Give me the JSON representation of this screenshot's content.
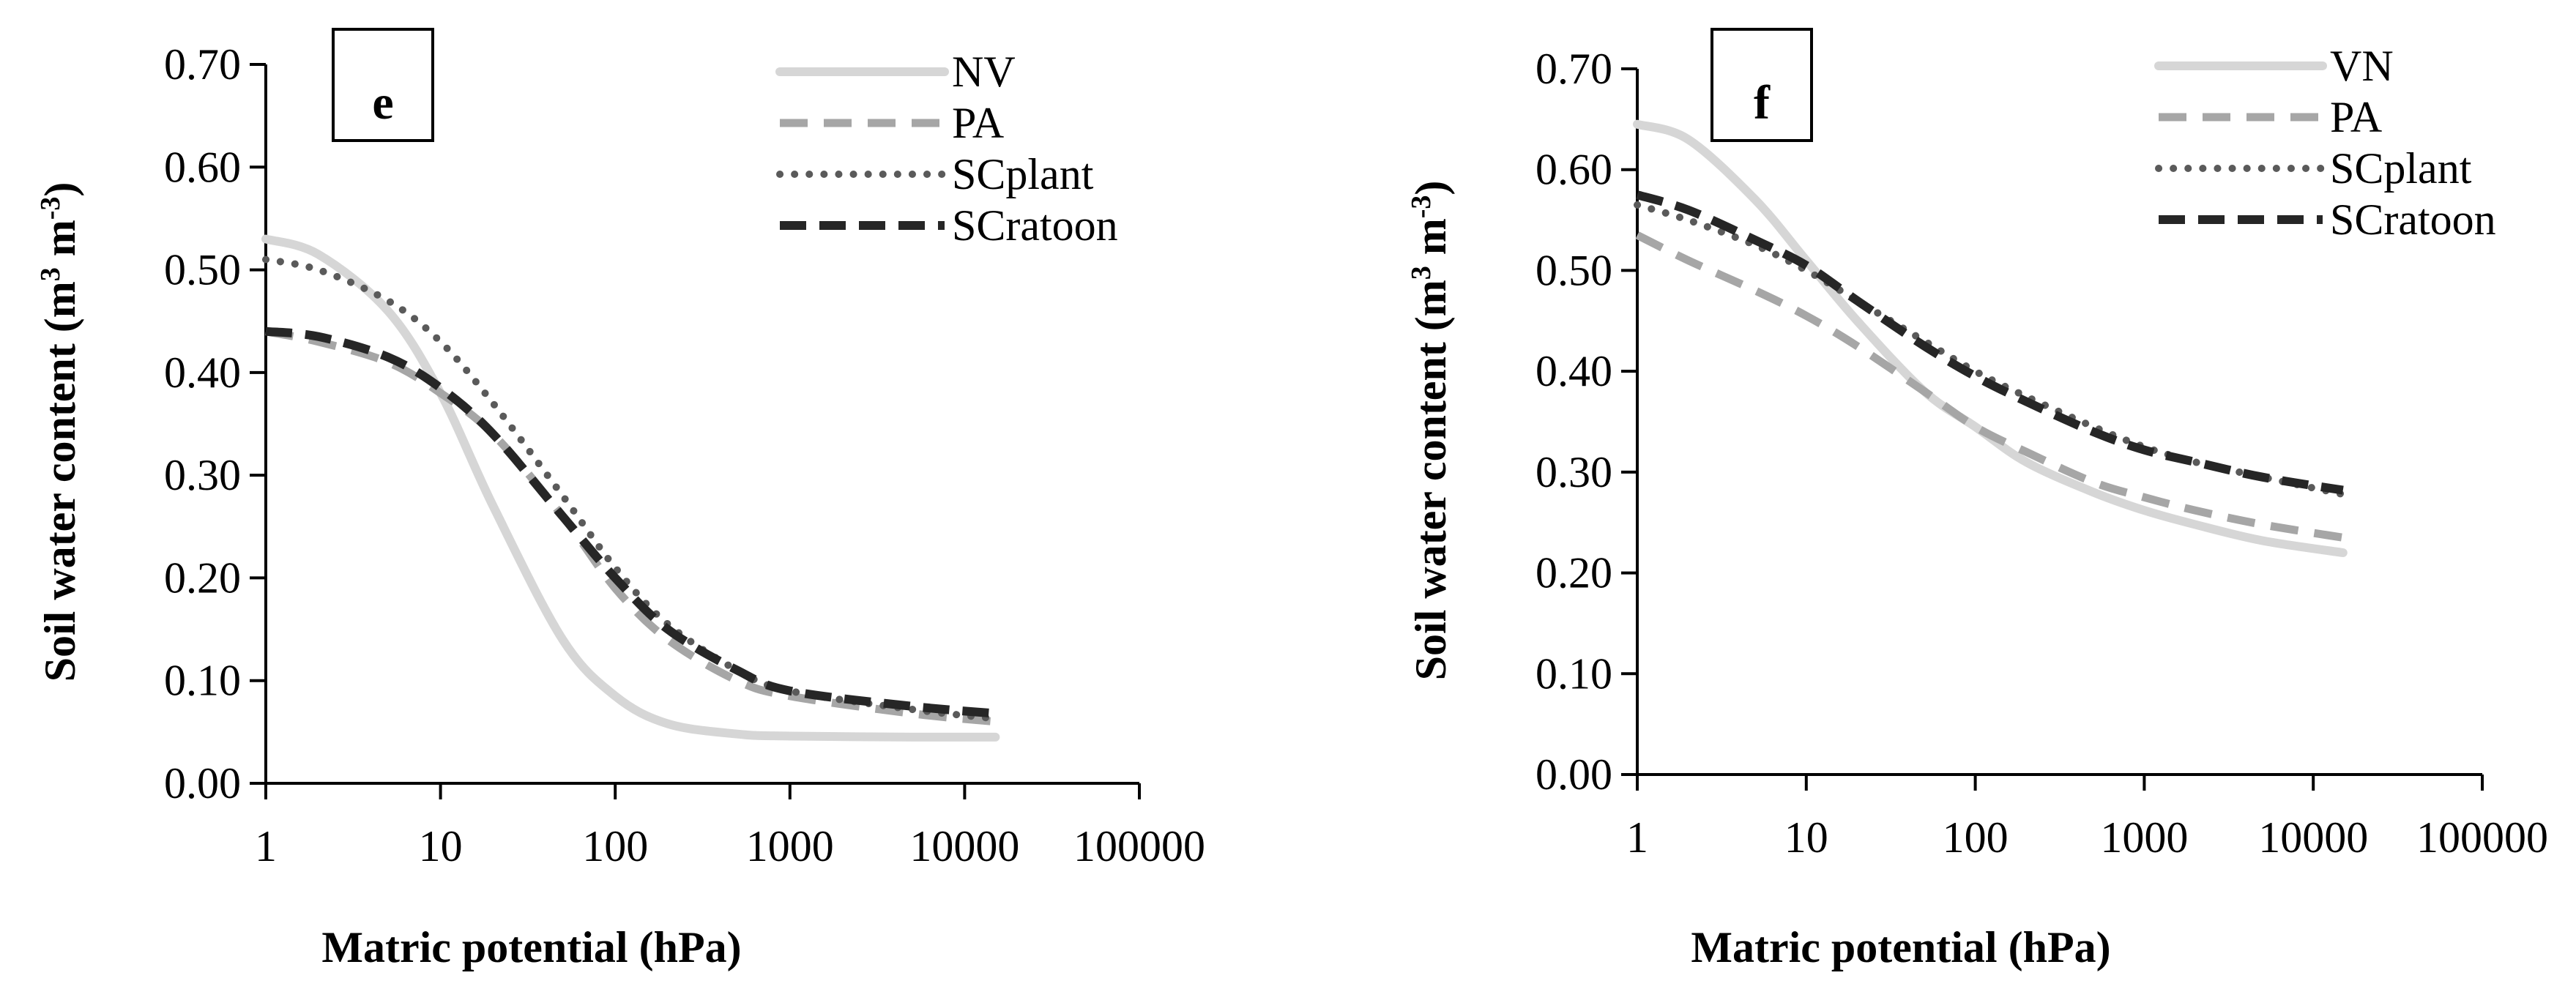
{
  "chart_data": [
    {
      "panel_label": "e",
      "type": "line",
      "xscale": "log",
      "xticks": [
        "1",
        "10",
        "100",
        "1000",
        "10000",
        "100000"
      ],
      "xtick_values": [
        1,
        10,
        100,
        1000,
        10000,
        100000
      ],
      "yticks": [
        "0.00",
        "0.10",
        "0.20",
        "0.30",
        "0.40",
        "0.50",
        "0.60",
        "0.70"
      ],
      "ytick_values": [
        0,
        0.1,
        0.2,
        0.3,
        0.4,
        0.5,
        0.6,
        0.7
      ],
      "xlim": [
        1,
        100000
      ],
      "ylim": [
        0,
        0.7
      ],
      "xlabel": "Matric potential (hPa)",
      "ylabel_main": "Soil water content (m",
      "ylabel_sup1": "3",
      "ylabel_mid": " m",
      "ylabel_sup2": "-3",
      "ylabel_end": ")",
      "x": [
        1,
        2,
        5,
        10,
        20,
        50,
        100,
        200,
        500,
        1000,
        5000,
        15000
      ],
      "series": [
        {
          "name": "NV",
          "style": "solid-light",
          "values": [
            0.53,
            0.515,
            0.46,
            0.38,
            0.27,
            0.14,
            0.085,
            0.058,
            0.048,
            0.046,
            0.045,
            0.045
          ]
        },
        {
          "name": "PA",
          "style": "dashed-gray",
          "values": [
            0.44,
            0.43,
            0.41,
            0.38,
            0.34,
            0.26,
            0.19,
            0.14,
            0.1,
            0.085,
            0.068,
            0.06
          ]
        },
        {
          "name": "SCplant",
          "style": "dotted-dark",
          "values": [
            0.51,
            0.5,
            0.47,
            0.43,
            0.37,
            0.28,
            0.21,
            0.155,
            0.11,
            0.09,
            0.072,
            0.063
          ]
        },
        {
          "name": "SCratoon",
          "style": "dashed-black",
          "values": [
            0.44,
            0.435,
            0.415,
            0.385,
            0.34,
            0.26,
            0.2,
            0.15,
            0.11,
            0.09,
            0.075,
            0.068
          ]
        }
      ],
      "legend_position": "top-right"
    },
    {
      "panel_label": "f",
      "type": "line",
      "xscale": "log",
      "xticks": [
        "1",
        "10",
        "100",
        "1000",
        "10000",
        "100000"
      ],
      "xtick_values": [
        1,
        10,
        100,
        1000,
        10000,
        100000
      ],
      "yticks": [
        "0.00",
        "0.10",
        "0.20",
        "0.30",
        "0.40",
        "0.50",
        "0.60",
        "0.70"
      ],
      "ytick_values": [
        0,
        0.1,
        0.2,
        0.3,
        0.4,
        0.5,
        0.6,
        0.7
      ],
      "xlim": [
        1,
        100000
      ],
      "ylim": [
        0,
        0.7
      ],
      "xlabel": "Matric potential (hPa)",
      "ylabel_main": "Soil water content (m",
      "ylabel_sup1": "3",
      "ylabel_mid": " m",
      "ylabel_sup2": "-3",
      "ylabel_end": ")",
      "x": [
        1,
        2,
        5,
        10,
        20,
        50,
        100,
        200,
        500,
        1000,
        2000,
        5000,
        15000
      ],
      "series": [
        {
          "name": "VN",
          "style": "solid-light",
          "values": [
            0.645,
            0.63,
            0.57,
            0.51,
            0.45,
            0.38,
            0.345,
            0.31,
            0.28,
            0.262,
            0.248,
            0.232,
            0.22
          ]
        },
        {
          "name": "PA",
          "style": "dashed-gray",
          "values": [
            0.535,
            0.51,
            0.48,
            0.455,
            0.425,
            0.38,
            0.345,
            0.32,
            0.29,
            0.275,
            0.262,
            0.248,
            0.235
          ]
        },
        {
          "name": "SCplant",
          "style": "dotted-dark",
          "values": [
            0.565,
            0.55,
            0.525,
            0.5,
            0.47,
            0.43,
            0.4,
            0.375,
            0.345,
            0.325,
            0.31,
            0.295,
            0.278
          ]
        },
        {
          "name": "SCratoon",
          "style": "dashed-black",
          "values": [
            0.575,
            0.56,
            0.53,
            0.505,
            0.47,
            0.425,
            0.395,
            0.37,
            0.34,
            0.322,
            0.31,
            0.295,
            0.282
          ]
        }
      ],
      "legend_position": "top-right"
    }
  ]
}
